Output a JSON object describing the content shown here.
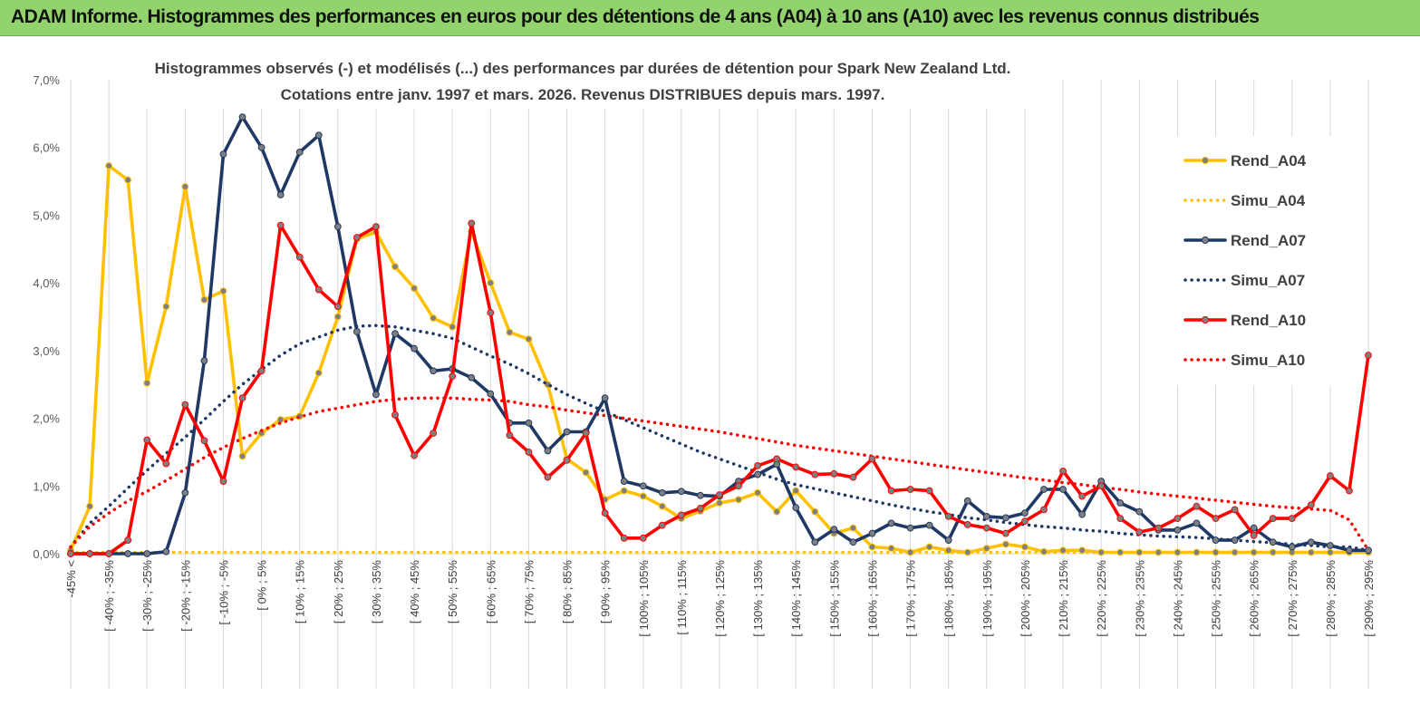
{
  "header": {
    "title": "ADAM Informe. Histogrammes des performances en euros pour des détentions de 4 ans (A04) à 10 ans (A10) avec les revenus connus distribués"
  },
  "chart_data": {
    "type": "line",
    "title_line1": "Histogrammes observés (-) et modélisés (...) des performances par durées de détention pour Spark New Zealand Ltd.",
    "title_line2": "Cotations entre janv. 1997 et mars. 2026.  Revenus DISTRIBUES depuis mars. 1997.",
    "ylim": [
      0,
      7
    ],
    "yticks": [
      "0,0%",
      "1,0%",
      "2,0%",
      "3,0%",
      "4,0%",
      "5,0%",
      "6,0%",
      "7,0%"
    ],
    "categories_labeled": [
      "-45% <",
      "[ -40% ; -35%",
      "[ -30% ; -25%",
      "[ -20% ; -15%",
      "[ -10% ; -5%",
      "[ 0% ; 5%",
      "[ 10% ; 15%",
      "[ 20% ; 25%",
      "[ 30% ; 35%",
      "[ 40% ; 45%",
      "[ 50% ; 55%",
      "[ 60% ; 65%",
      "[ 70% ; 75%",
      "[ 80% ; 85%",
      "[ 90% ; 95%",
      "[ 100% ; 105%",
      "[ 110% ; 115%",
      "[ 120% ; 125%",
      "[ 130% ; 135%",
      "[ 140% ; 145%",
      "[ 150% ; 155%",
      "[ 160% ; 165%",
      "[ 170% ; 175%",
      "[ 180% ; 185%",
      "[ 190% ; 195%",
      "[ 200% ; 205%",
      "[ 210% ; 215%",
      "[ 220% ; 225%",
      "[ 230% ; 235%",
      "[ 240% ; 245%",
      "[ 250% ; 255%",
      "[ 260% ; 265%",
      "[ 270% ; 275%",
      "[ 280% ; 285%",
      "[ 290% ; 295%"
    ],
    "n_points": 69,
    "series": [
      {
        "name": "Rend_A04",
        "color": "#ffc000",
        "style": "solid",
        "markers": true,
        "values": [
          0.05,
          0.7,
          5.73,
          5.52,
          2.52,
          3.65,
          5.42,
          3.75,
          3.88,
          1.44,
          1.78,
          1.98,
          2.03,
          2.67,
          3.5,
          4.65,
          4.75,
          4.24,
          3.92,
          3.48,
          3.35,
          4.76,
          4.0,
          3.27,
          3.17,
          2.5,
          1.4,
          1.2,
          0.8,
          0.93,
          0.85,
          0.7,
          0.52,
          0.63,
          0.75,
          0.8,
          0.9,
          0.62,
          0.93,
          0.62,
          0.3,
          0.38,
          0.1,
          0.08,
          0.02,
          0.1,
          0.05,
          0.02,
          0.08,
          0.14,
          0.1,
          0.03,
          0.05,
          0.05,
          0.02,
          0.02,
          0.02,
          0.02,
          0.02,
          0.02,
          0.02,
          0.02,
          0.02,
          0.02,
          0.02,
          0.02,
          0.02,
          0.02,
          0.02
        ]
      },
      {
        "name": "Simu_A04",
        "color": "#ffc000",
        "style": "dotted",
        "markers": false,
        "values": [
          0.02,
          0.02,
          0.02,
          0.02,
          0.02,
          0.02,
          0.02,
          0.02,
          0.02,
          0.02,
          0.02,
          0.02,
          0.02,
          0.02,
          0.02,
          0.02,
          0.02,
          0.02,
          0.02,
          0.02,
          0.02,
          0.02,
          0.02,
          0.02,
          0.02,
          0.02,
          0.02,
          0.02,
          0.02,
          0.02,
          0.02,
          0.02,
          0.02,
          0.02,
          0.02,
          0.02,
          0.02,
          0.02,
          0.02,
          0.02,
          0.02,
          0.02,
          0.02,
          0.02,
          0.02,
          0.02,
          0.02,
          0.02,
          0.02,
          0.02,
          0.02,
          0.02,
          0.02,
          0.02,
          0.02,
          0.02,
          0.02,
          0.02,
          0.02,
          0.02,
          0.02,
          0.02,
          0.02,
          0.02,
          0.02,
          0.02,
          0.02,
          0.02,
          0.02
        ]
      },
      {
        "name": "Rend_A07",
        "color": "#1f3864",
        "style": "solid",
        "markers": true,
        "values": [
          0.0,
          0.0,
          0.0,
          0.0,
          0.0,
          0.03,
          0.9,
          2.85,
          5.9,
          6.45,
          6.0,
          5.3,
          5.93,
          6.18,
          4.83,
          3.28,
          2.35,
          3.25,
          3.03,
          2.7,
          2.73,
          2.6,
          2.36,
          1.93,
          1.93,
          1.52,
          1.8,
          1.8,
          2.3,
          1.07,
          1.0,
          0.9,
          0.92,
          0.86,
          0.85,
          1.07,
          1.17,
          1.32,
          0.68,
          0.17,
          0.36,
          0.17,
          0.3,
          0.45,
          0.38,
          0.42,
          0.2,
          0.78,
          0.55,
          0.53,
          0.6,
          0.95,
          0.95,
          0.58,
          1.07,
          0.75,
          0.62,
          0.35,
          0.35,
          0.45,
          0.2,
          0.2,
          0.38,
          0.17,
          0.1,
          0.17,
          0.12,
          0.05,
          0.05
        ]
      },
      {
        "name": "Simu_A07",
        "color": "#1f3864",
        "style": "dotted",
        "markers": false,
        "values": [
          0.1,
          0.45,
          0.7,
          0.97,
          1.23,
          1.48,
          1.72,
          1.98,
          2.25,
          2.5,
          2.72,
          2.93,
          3.1,
          3.2,
          3.3,
          3.36,
          3.37,
          3.35,
          3.3,
          3.25,
          3.18,
          3.05,
          2.92,
          2.8,
          2.66,
          2.5,
          2.35,
          2.22,
          2.1,
          1.98,
          1.86,
          1.74,
          1.62,
          1.5,
          1.4,
          1.3,
          1.2,
          1.1,
          1.02,
          0.96,
          0.9,
          0.84,
          0.78,
          0.72,
          0.67,
          0.62,
          0.58,
          0.53,
          0.5,
          0.46,
          0.43,
          0.4,
          0.38,
          0.35,
          0.33,
          0.3,
          0.28,
          0.26,
          0.25,
          0.24,
          0.22,
          0.2,
          0.18,
          0.16,
          0.14,
          0.12,
          0.1,
          0.1,
          0.05
        ]
      },
      {
        "name": "Rend_A10",
        "color": "#ff0000",
        "style": "solid",
        "markers": true,
        "values": [
          0.0,
          0.0,
          0.0,
          0.2,
          1.68,
          1.33,
          2.2,
          1.67,
          1.07,
          2.3,
          2.7,
          4.85,
          4.38,
          3.9,
          3.65,
          4.67,
          4.83,
          2.05,
          1.45,
          1.78,
          2.62,
          4.88,
          3.56,
          1.75,
          1.5,
          1.13,
          1.38,
          1.78,
          0.6,
          0.23,
          0.23,
          0.42,
          0.57,
          0.67,
          0.87,
          1.0,
          1.3,
          1.4,
          1.28,
          1.17,
          1.18,
          1.13,
          1.4,
          0.93,
          0.95,
          0.93,
          0.55,
          0.43,
          0.38,
          0.3,
          0.48,
          0.65,
          1.22,
          0.85,
          1.0,
          0.52,
          0.32,
          0.38,
          0.52,
          0.7,
          0.52,
          0.65,
          0.27,
          0.52,
          0.52,
          0.72,
          1.15,
          0.93,
          2.93
        ]
      },
      {
        "name": "Simu_A10",
        "color": "#ff0000",
        "style": "dotted",
        "markers": false,
        "values": [
          0.1,
          0.4,
          0.6,
          0.78,
          0.92,
          1.08,
          1.25,
          1.42,
          1.57,
          1.7,
          1.82,
          1.93,
          2.02,
          2.1,
          2.15,
          2.2,
          2.25,
          2.28,
          2.3,
          2.3,
          2.3,
          2.28,
          2.27,
          2.25,
          2.2,
          2.17,
          2.12,
          2.08,
          2.04,
          2.0,
          1.96,
          1.92,
          1.88,
          1.84,
          1.8,
          1.75,
          1.7,
          1.65,
          1.6,
          1.56,
          1.52,
          1.48,
          1.44,
          1.4,
          1.36,
          1.32,
          1.28,
          1.24,
          1.2,
          1.16,
          1.12,
          1.09,
          1.05,
          1.02,
          0.98,
          0.95,
          0.91,
          0.88,
          0.85,
          0.82,
          0.79,
          0.76,
          0.73,
          0.7,
          0.68,
          0.66,
          0.64,
          0.5,
          0.05
        ]
      }
    ],
    "legend_position": "right"
  }
}
